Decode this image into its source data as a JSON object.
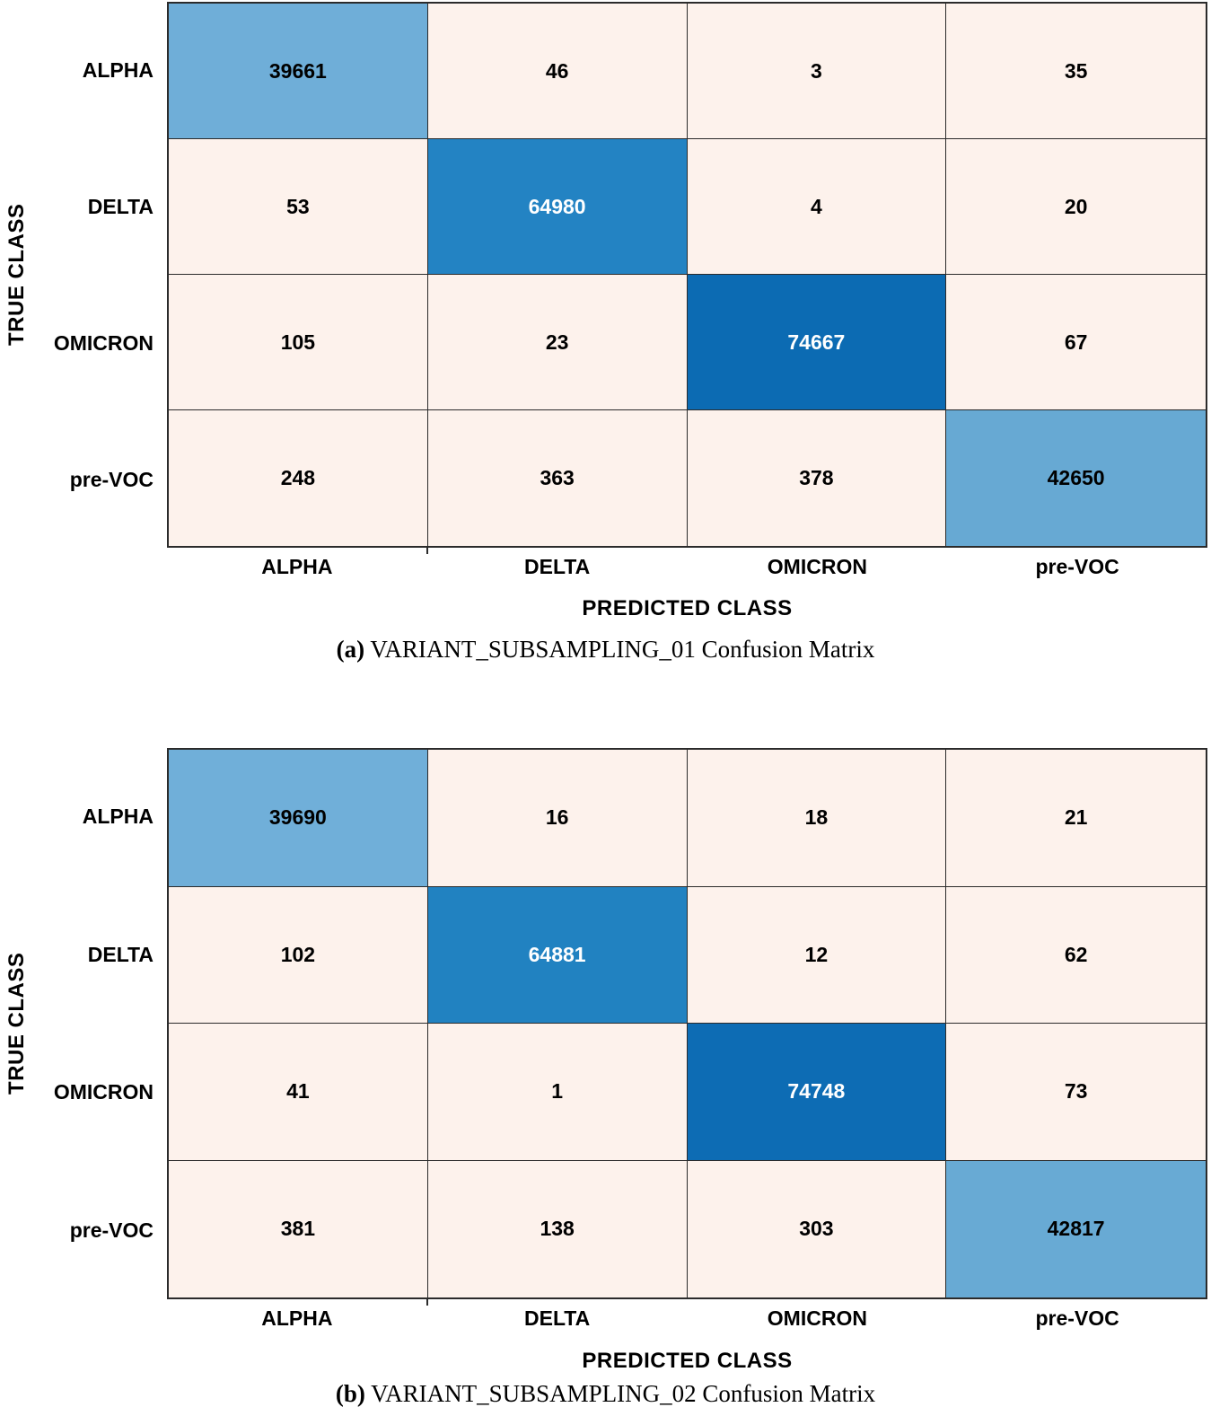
{
  "page": {
    "background": "#ffffff",
    "grid_line_color": "#2b2b2b"
  },
  "chart_data": [
    {
      "type": "heatmap",
      "title": "VARIANT_SUBSAMPLING_01 Confusion Matrix",
      "caption_label": "(a)",
      "caption_text": " VARIANT_SUBSAMPLING_01 Confusion Matrix",
      "xlabel": "PREDICTED CLASS",
      "ylabel": "TRUE CLASS",
      "classes": [
        "ALPHA",
        "DELTA",
        "OMICRON",
        "pre-VOC"
      ],
      "matrix": [
        [
          39661,
          46,
          3,
          35
        ],
        [
          53,
          64980,
          4,
          20
        ],
        [
          105,
          23,
          74667,
          67
        ],
        [
          248,
          363,
          378,
          42650
        ]
      ],
      "diagonal_colors": [
        "#6FAED8",
        "#2383C3",
        "#0C6BB3",
        "#67A9D3"
      ],
      "diagonal_text_colors": [
        "#000000",
        "#ffffff",
        "#ffffff",
        "#000000"
      ],
      "offdiag_color": "#FDF2EC",
      "offdiag_text_color": "#000000"
    },
    {
      "type": "heatmap",
      "title": "VARIANT_SUBSAMPLING_02 Confusion Matrix",
      "caption_label": "(b)",
      "caption_text": " VARIANT_SUBSAMPLING_02 Confusion Matrix",
      "xlabel": "PREDICTED CLASS",
      "ylabel": "TRUE CLASS",
      "classes": [
        "ALPHA",
        "DELTA",
        "OMICRON",
        "pre-VOC"
      ],
      "matrix": [
        [
          39690,
          16,
          18,
          21
        ],
        [
          102,
          64881,
          12,
          62
        ],
        [
          41,
          1,
          74748,
          73
        ],
        [
          381,
          138,
          303,
          42817
        ]
      ],
      "diagonal_colors": [
        "#70AFD9",
        "#2182C1",
        "#0D6CB4",
        "#68AAD4"
      ],
      "diagonal_text_colors": [
        "#000000",
        "#ffffff",
        "#ffffff",
        "#000000"
      ],
      "offdiag_color": "#FDF2EC",
      "offdiag_text_color": "#000000"
    }
  ]
}
